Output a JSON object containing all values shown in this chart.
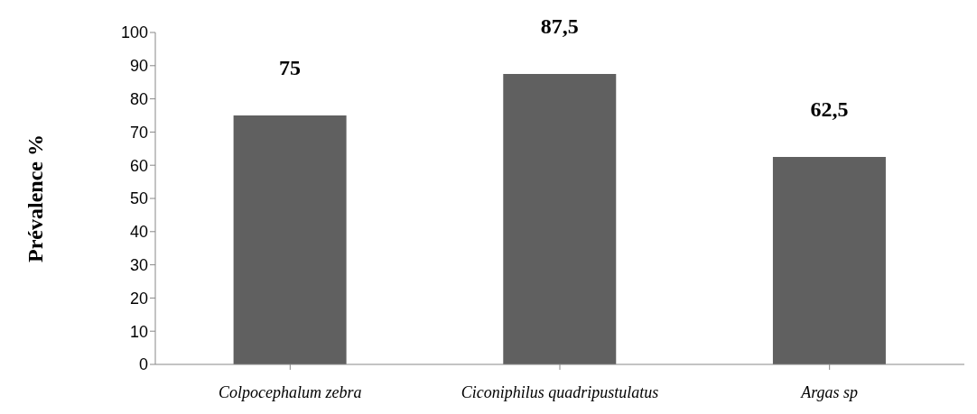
{
  "chart_data": {
    "type": "bar",
    "ylabel": "Prévalence %",
    "categories": [
      "Colpocephalum zebra",
      "Ciconiphilus quadripustulatus",
      "Argas sp"
    ],
    "values": [
      75,
      87.5,
      62.5
    ],
    "color": "#606060",
    "value_labels": [
      "75",
      "87,5",
      "62,5"
    ],
    "ylim": [
      0,
      100
    ],
    "yticks": [
      0,
      10,
      20,
      30,
      40,
      50,
      60,
      70,
      80,
      90,
      100
    ],
    "grid": false,
    "legend": false
  }
}
